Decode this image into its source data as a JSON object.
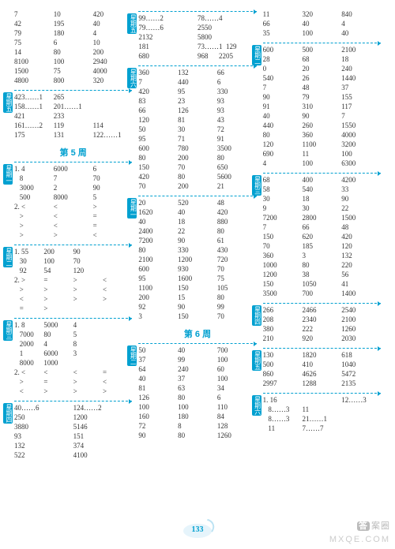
{
  "page_number": "133",
  "watermark1": "答案圈",
  "watermark2": "MXQE.COM",
  "headings": {
    "w5": "第 5 周",
    "w6": "第 6 周"
  },
  "labels": {
    "wd1": "星期一",
    "wd2": "星期二",
    "wd3": "星期三",
    "wd4": "星期四",
    "wd5": "星期五",
    "wd6": "星期六"
  },
  "col1": {
    "b1": [
      [
        "7",
        "10",
        "420"
      ],
      [
        "42",
        "195",
        "40"
      ],
      [
        "79",
        "180",
        "4"
      ],
      [
        "75",
        "6",
        "10"
      ],
      [
        "14",
        "80",
        "200"
      ],
      [
        "8100",
        "100",
        "2940"
      ],
      [
        "1500",
        "75",
        "4000"
      ],
      [
        "4800",
        "800",
        "320"
      ]
    ],
    "b2": [
      [
        "423……1",
        "265",
        ""
      ],
      [
        "158……1",
        "201……1",
        ""
      ],
      [
        "421",
        "233",
        ""
      ],
      [
        "161……2",
        "119",
        "114"
      ],
      [
        "175",
        "131",
        "122……1"
      ]
    ],
    "b3": [
      [
        "1. 4",
        "6000",
        "6"
      ],
      [
        "   8",
        "7",
        "70"
      ],
      [
        "   3000",
        "2",
        "90"
      ],
      [
        "   500",
        "8000",
        "5"
      ],
      [
        "2. <",
        "<",
        ">"
      ],
      [
        "   >",
        "<",
        "="
      ],
      [
        "   >",
        "<",
        "="
      ],
      [
        "   >",
        ">",
        "<"
      ]
    ],
    "b4": [
      [
        "1. 55",
        "200",
        "90"
      ],
      [
        "   30",
        "100",
        "70"
      ],
      [
        "   92",
        "54",
        "120"
      ],
      [
        "2. >",
        "=",
        ">",
        "<"
      ],
      [
        "   >",
        ">",
        ">",
        "<"
      ],
      [
        "   <",
        ">",
        ">",
        ">"
      ],
      [
        "   =",
        ">",
        "",
        ""
      ]
    ],
    "b5": [
      [
        "1. 8",
        "5000",
        "4"
      ],
      [
        "   7000",
        "80",
        "5"
      ],
      [
        "   2000",
        "4",
        "8"
      ],
      [
        "   1",
        "6000",
        "3"
      ],
      [
        "   8000",
        "1000",
        ""
      ],
      [
        "2. <",
        "<",
        "<",
        "="
      ],
      [
        "   >",
        "=",
        ">",
        "<"
      ],
      [
        "   <",
        ">",
        ">",
        ">"
      ]
    ],
    "b6": [
      [
        "40……6",
        "124……2"
      ],
      [
        "250",
        "1200"
      ],
      [
        "3880",
        "5146"
      ],
      [
        "93",
        "151"
      ],
      [
        "132",
        "374"
      ],
      [
        "522",
        "4100"
      ]
    ]
  },
  "col2": {
    "b1": [
      [
        "99……2",
        "78……4"
      ],
      [
        "79……6",
        "2550"
      ],
      [
        "2132",
        "5800"
      ],
      [
        "181",
        "73……1  129"
      ],
      [
        "680",
        "968      2205"
      ]
    ],
    "b2": [
      [
        "360",
        "132",
        "66"
      ],
      [
        "7",
        "440",
        "6"
      ],
      [
        "420",
        "95",
        "330"
      ],
      [
        "83",
        "23",
        "93"
      ],
      [
        "66",
        "126",
        "93"
      ],
      [
        "120",
        "81",
        "43"
      ],
      [
        "50",
        "30",
        "72"
      ],
      [
        "95",
        "71",
        "91"
      ],
      [
        "600",
        "780",
        "3500"
      ],
      [
        "80",
        "200",
        "80"
      ],
      [
        "150",
        "70",
        "650"
      ],
      [
        "420",
        "80",
        "5600"
      ],
      [
        "70",
        "200",
        "21"
      ]
    ],
    "b3": [
      [
        "20",
        "520",
        "48"
      ],
      [
        "1620",
        "40",
        "420"
      ],
      [
        "40",
        "18",
        "880"
      ],
      [
        "2400",
        "22",
        "80"
      ],
      [
        "7200",
        "90",
        "61"
      ],
      [
        "80",
        "330",
        "430"
      ],
      [
        "2100",
        "1200",
        "720"
      ],
      [
        "600",
        "930",
        "70"
      ],
      [
        "95",
        "1600",
        "75"
      ],
      [
        "1100",
        "150",
        "105"
      ],
      [
        "200",
        "15",
        "80"
      ],
      [
        "92",
        "90",
        "99"
      ],
      [
        "3",
        "150",
        "70"
      ]
    ],
    "b4": [
      [
        "50",
        "40",
        "700"
      ],
      [
        "37",
        "99",
        "100"
      ],
      [
        "64",
        "240",
        "60"
      ],
      [
        "40",
        "37",
        "100"
      ],
      [
        "81",
        "63",
        "34"
      ],
      [
        "126",
        "80",
        "6"
      ],
      [
        "100",
        "100",
        "110"
      ],
      [
        "160",
        "180",
        "84"
      ],
      [
        "72",
        "8",
        "128"
      ],
      [
        "90",
        "80",
        "1260"
      ]
    ]
  },
  "col3": {
    "b1": [
      [
        "11",
        "320",
        "840"
      ],
      [
        "66",
        "40",
        "4"
      ],
      [
        "35",
        "100",
        "40"
      ]
    ],
    "b2": [
      [
        "600",
        "500",
        "2100"
      ],
      [
        "28",
        "68",
        "18"
      ],
      [
        "0",
        "20",
        "240"
      ],
      [
        "540",
        "26",
        "1440"
      ],
      [
        "7",
        "48",
        "37"
      ],
      [
        "90",
        "79",
        "155"
      ],
      [
        "91",
        "310",
        "117"
      ],
      [
        "40",
        "90",
        "7"
      ],
      [
        "440",
        "260",
        "1550"
      ],
      [
        "80",
        "360",
        "4000"
      ],
      [
        "120",
        "1100",
        "3200"
      ],
      [
        "690",
        "11",
        "100"
      ],
      [
        "4",
        "100",
        "6300"
      ]
    ],
    "b3": [
      [
        "68",
        "400",
        "4200"
      ],
      [
        "58",
        "540",
        "33"
      ],
      [
        "30",
        "18",
        "90"
      ],
      [
        "9",
        "30",
        "22"
      ],
      [
        "7200",
        "2800",
        "1500"
      ],
      [
        "7",
        "66",
        "48"
      ],
      [
        "150",
        "620",
        "420"
      ],
      [
        "70",
        "185",
        "120"
      ],
      [
        "360",
        "3",
        "132"
      ],
      [
        "1000",
        "80",
        "220"
      ],
      [
        "1200",
        "38",
        "56"
      ],
      [
        "150",
        "1050",
        "41"
      ],
      [
        "3500",
        "700",
        "1400"
      ]
    ],
    "b4": [
      [
        "266",
        "2466",
        "2540"
      ],
      [
        "208",
        "2340",
        "2100"
      ],
      [
        "380",
        "222",
        "1260"
      ],
      [
        "210",
        "920",
        "2030"
      ]
    ],
    "b5": [
      [
        "130",
        "1820",
        "618"
      ],
      [
        "500",
        "410",
        "1040"
      ],
      [
        "860",
        "4626",
        "5472"
      ],
      [
        "2997",
        "1288",
        "2135"
      ]
    ],
    "b6": [
      [
        "1. 16",
        "",
        "12……3"
      ],
      [
        "   8……3",
        "11",
        ""
      ],
      [
        "   8……3",
        "21……1",
        ""
      ],
      [
        "   11",
        "7……7",
        ""
      ]
    ]
  }
}
